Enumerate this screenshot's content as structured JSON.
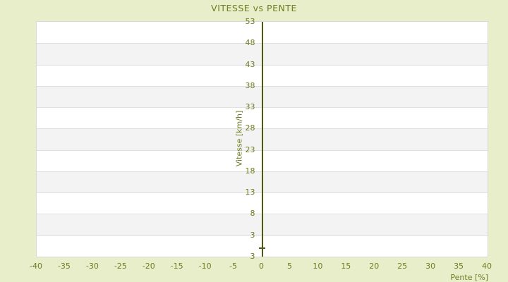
{
  "title": "VITESSE vs PENTE",
  "colors": {
    "page_background": "#e9eeca",
    "text_olive": "#707c21",
    "axis_line": "#4c5a14",
    "band_light": "#ffffff",
    "band_dark": "#f3f3f3",
    "gridline": "#e0e0e0",
    "plot_border": "#d9d9d9"
  },
  "chart_data": {
    "type": "scatter",
    "title": "VITESSE vs PENTE",
    "xlabel": "Pente [%]",
    "ylabel": "Vitesse [km/h]",
    "xlim": [
      -40,
      40
    ],
    "ylim": [
      -2,
      53
    ],
    "x_tick_values": [
      -40,
      -35,
      -30,
      -25,
      -20,
      -15,
      -10,
      -5,
      0,
      5,
      10,
      15,
      20,
      25,
      30,
      35,
      40
    ],
    "x_tick_labels": [
      "-40",
      "-35",
      "-30",
      "-25",
      "-20",
      "-15",
      "-10",
      "-5",
      "0",
      "5",
      "10",
      "15",
      "20",
      "25",
      "30",
      "35",
      "40"
    ],
    "y_tick_labels_top_to_bottom": [
      "53",
      "48",
      "43",
      "38",
      "33",
      "28",
      "23",
      "18",
      "13",
      "8",
      "3",
      "3"
    ],
    "grid": "horizontal-only",
    "band_count": 11,
    "legend": "none",
    "series": [
      {
        "name": "vitesse-vs-pente-points",
        "marker": "plus-dash",
        "points": [
          {
            "x": 0,
            "y": 0
          }
        ]
      }
    ],
    "y_axis_drawn_at_x": 0
  }
}
